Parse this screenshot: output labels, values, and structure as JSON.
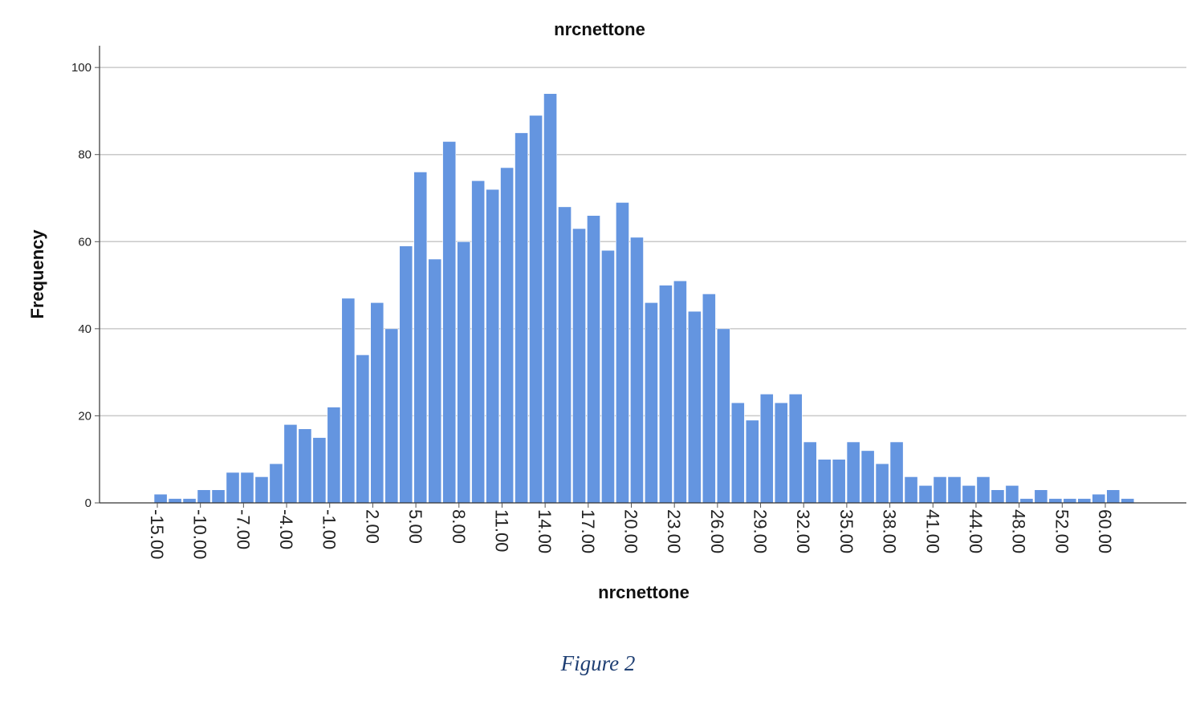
{
  "chart_data": {
    "type": "bar",
    "title": "nrcnettone",
    "xlabel": "nrcnettone",
    "ylabel": "Frequency",
    "ylim": [
      0,
      105
    ],
    "yticks": [
      0,
      20,
      40,
      60,
      80,
      100
    ],
    "grid": true,
    "bar_color": "#6495e0",
    "xtick_labels": [
      "-15.00",
      "-10.00",
      "-7.00",
      "-4.00",
      "-1.00",
      "2.00",
      "5.00",
      "8.00",
      "11.00",
      "14.00",
      "17.00",
      "20.00",
      "23.00",
      "26.00",
      "29.00",
      "32.00",
      "35.00",
      "38.00",
      "41.00",
      "44.00",
      "48.00",
      "52.00",
      "60.00"
    ],
    "values": [
      2,
      1,
      1,
      3,
      3,
      7,
      7,
      6,
      9,
      18,
      17,
      15,
      22,
      47,
      34,
      46,
      40,
      59,
      76,
      56,
      83,
      60,
      74,
      72,
      77,
      85,
      89,
      94,
      68,
      63,
      66,
      58,
      69,
      61,
      46,
      50,
      51,
      44,
      48,
      40,
      23,
      19,
      25,
      23,
      25,
      14,
      10,
      10,
      14,
      12,
      9,
      14,
      6,
      4,
      6,
      6,
      4,
      6,
      3,
      4,
      1,
      3,
      1,
      1,
      1,
      2,
      3,
      1
    ]
  },
  "caption": "Figure 2"
}
